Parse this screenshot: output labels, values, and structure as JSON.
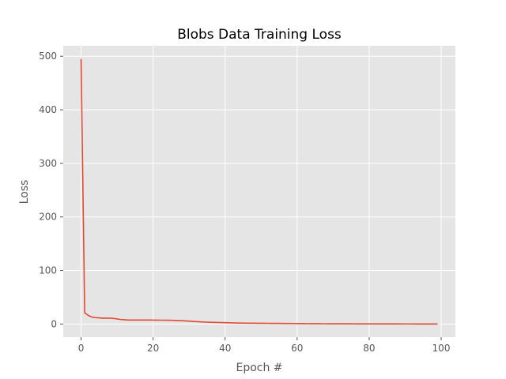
{
  "chart_data": {
    "type": "line",
    "title": "Blobs Data Training Loss",
    "xlabel": "Epoch #",
    "ylabel": "Loss",
    "xlim": [
      -4.95,
      103.95
    ],
    "ylim": [
      -24.5,
      519.5
    ],
    "xticks": [
      0,
      20,
      40,
      60,
      80,
      100
    ],
    "yticks": [
      0,
      100,
      200,
      300,
      400,
      500
    ],
    "grid": true,
    "legend": "none",
    "colors": {
      "background": "#e5e5e5",
      "grid": "#ffffff",
      "line": "#e24a33",
      "tick": "#555555",
      "title": "#000000"
    },
    "series": [
      {
        "x": [
          0,
          1,
          2,
          3,
          4,
          5,
          6,
          7,
          8,
          9,
          10,
          11,
          12,
          13,
          14,
          15,
          16,
          17,
          18,
          19,
          20,
          21,
          22,
          23,
          24,
          25,
          26,
          27,
          28,
          29,
          30,
          31,
          32,
          33,
          34,
          35,
          36,
          37,
          38,
          39,
          40,
          41,
          42,
          43,
          44,
          45,
          46,
          47,
          48,
          49,
          50,
          51,
          52,
          53,
          54,
          55,
          56,
          57,
          58,
          59,
          60,
          61,
          62,
          63,
          64,
          65,
          66,
          67,
          68,
          69,
          70,
          71,
          72,
          73,
          74,
          75,
          76,
          77,
          78,
          79,
          80,
          81,
          82,
          83,
          84,
          85,
          86,
          87,
          88,
          89,
          90,
          91,
          92,
          93,
          94,
          95,
          96,
          97,
          98,
          99
        ],
        "y": [
          495,
          21,
          16,
          13,
          12,
          11.5,
          11,
          11,
          11,
          10.5,
          9.5,
          8.5,
          8,
          7.5,
          7.5,
          7.5,
          7.5,
          7.5,
          7.4,
          7.4,
          7.3,
          7.3,
          7.2,
          7.2,
          7.1,
          7.0,
          6.8,
          6.5,
          6.2,
          5.8,
          5.4,
          4.9,
          4.5,
          4.1,
          3.8,
          3.5,
          3.3,
          3.1,
          2.9,
          2.7,
          2.5,
          2.3,
          2.1,
          1.9,
          1.8,
          1.7,
          1.6,
          1.55,
          1.5,
          1.45,
          1.4,
          1.35,
          1.3,
          1.25,
          1.2,
          1.15,
          1.1,
          1.05,
          1.0,
          0.95,
          0.9,
          0.85,
          0.8,
          0.75,
          0.7,
          0.66,
          0.62,
          0.58,
          0.55,
          0.52,
          0.5,
          0.48,
          0.46,
          0.44,
          0.42,
          0.4,
          0.38,
          0.36,
          0.34,
          0.32,
          0.3,
          0.29,
          0.28,
          0.27,
          0.26,
          0.25,
          0.24,
          0.23,
          0.22,
          0.21,
          0.2,
          0.19,
          0.18,
          0.17,
          0.16,
          0.15,
          0.14,
          0.13,
          0.12,
          0.11
        ]
      }
    ]
  }
}
